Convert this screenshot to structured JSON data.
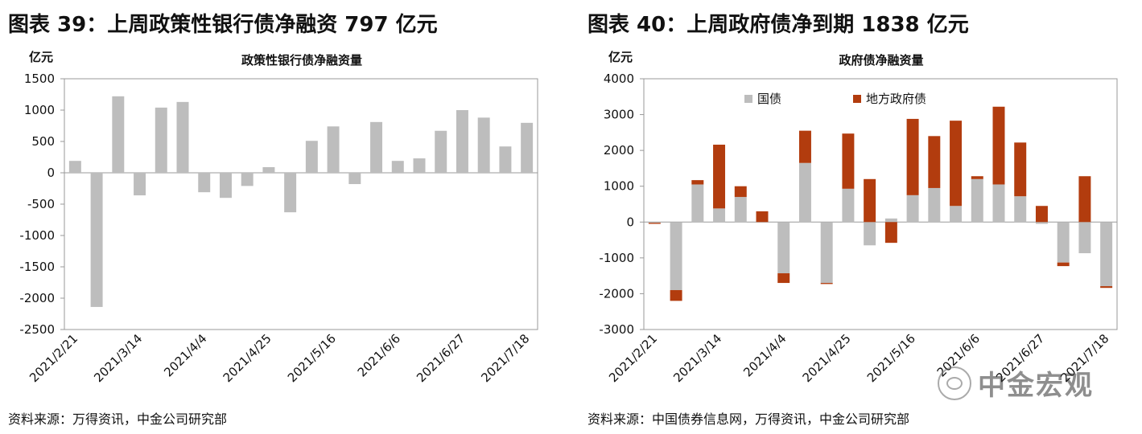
{
  "left": {
    "figure_title": "图表 39：上周政策性银行债净融资 797 亿元",
    "unit": "亿元",
    "source": "资料来源：万得资讯，中金公司研究部"
  },
  "right": {
    "figure_title": "图表 40：上周政府债净到期 1838 亿元",
    "unit": "亿元",
    "source": "资料来源：中国债券信息网，万得资讯，中金公司研究部",
    "legend": [
      "国债",
      "地方政府债"
    ]
  },
  "watermark": "中金宏观",
  "colors": {
    "gray": "#bdbdbd",
    "orange": "#b23c0e",
    "axis": "#999999"
  },
  "chart_data": [
    {
      "type": "bar",
      "title": "政策性银行债净融资量",
      "ylabel": "亿元",
      "ylim": [
        -2500,
        1500
      ],
      "yticks": [
        1500,
        1000,
        500,
        0,
        -500,
        -1000,
        -1500,
        -2000,
        -2500
      ],
      "x_tick_labels": [
        "2021/2/21",
        "2021/3/14",
        "2021/4/4",
        "2021/4/25",
        "2021/5/16",
        "2021/6/6",
        "2021/6/27",
        "2021/7/18"
      ],
      "x_tick_every": 3,
      "categories": [
        "2021/2/21",
        "2021/2/28",
        "2021/3/7",
        "2021/3/14",
        "2021/3/21",
        "2021/3/28",
        "2021/4/4",
        "2021/4/11",
        "2021/4/18",
        "2021/4/25",
        "2021/5/2",
        "2021/5/9",
        "2021/5/16",
        "2021/5/23",
        "2021/5/30",
        "2021/6/6",
        "2021/6/13",
        "2021/6/20",
        "2021/6/27",
        "2021/7/4",
        "2021/7/11",
        "2021/7/18"
      ],
      "series": [
        {
          "values": [
            190,
            -2140,
            1220,
            -360,
            1040,
            1130,
            -310,
            -400,
            -210,
            90,
            -630,
            510,
            740,
            -180,
            810,
            190,
            230,
            670,
            1000,
            880,
            420,
            797
          ]
        }
      ]
    },
    {
      "type": "bar",
      "stacked": true,
      "title": "政府债净融资量",
      "ylabel": "亿元",
      "ylim": [
        -3000,
        4000
      ],
      "yticks": [
        4000,
        3000,
        2000,
        1000,
        0,
        -1000,
        -2000,
        -3000
      ],
      "x_tick_labels": [
        "2021/2/21",
        "2021/3/14",
        "2021/4/4",
        "2021/4/25",
        "2021/5/16",
        "2021/6/6",
        "2021/6/27",
        "2021/7/18"
      ],
      "x_tick_every": 3,
      "categories": [
        "2021/2/21",
        "2021/2/28",
        "2021/3/7",
        "2021/3/14",
        "2021/3/21",
        "2021/3/28",
        "2021/4/4",
        "2021/4/11",
        "2021/4/18",
        "2021/4/25",
        "2021/5/2",
        "2021/5/9",
        "2021/5/16",
        "2021/5/23",
        "2021/5/30",
        "2021/6/6",
        "2021/6/13",
        "2021/6/20",
        "2021/6/27",
        "2021/7/4",
        "2021/7/11",
        "2021/7/18"
      ],
      "series": [
        {
          "name": "国债",
          "values": [
            -20,
            -1900,
            1050,
            380,
            700,
            0,
            -1430,
            1650,
            -1700,
            930,
            -650,
            100,
            750,
            950,
            450,
            1200,
            1050,
            720,
            -50,
            -1130,
            -870,
            -1790
          ]
        },
        {
          "name": "地方政府债",
          "values": [
            -30,
            -300,
            120,
            1780,
            300,
            300,
            -270,
            900,
            -30,
            1540,
            1200,
            -580,
            2130,
            1450,
            2380,
            80,
            2170,
            1500,
            450,
            -100,
            1280,
            -48
          ]
        }
      ]
    }
  ]
}
